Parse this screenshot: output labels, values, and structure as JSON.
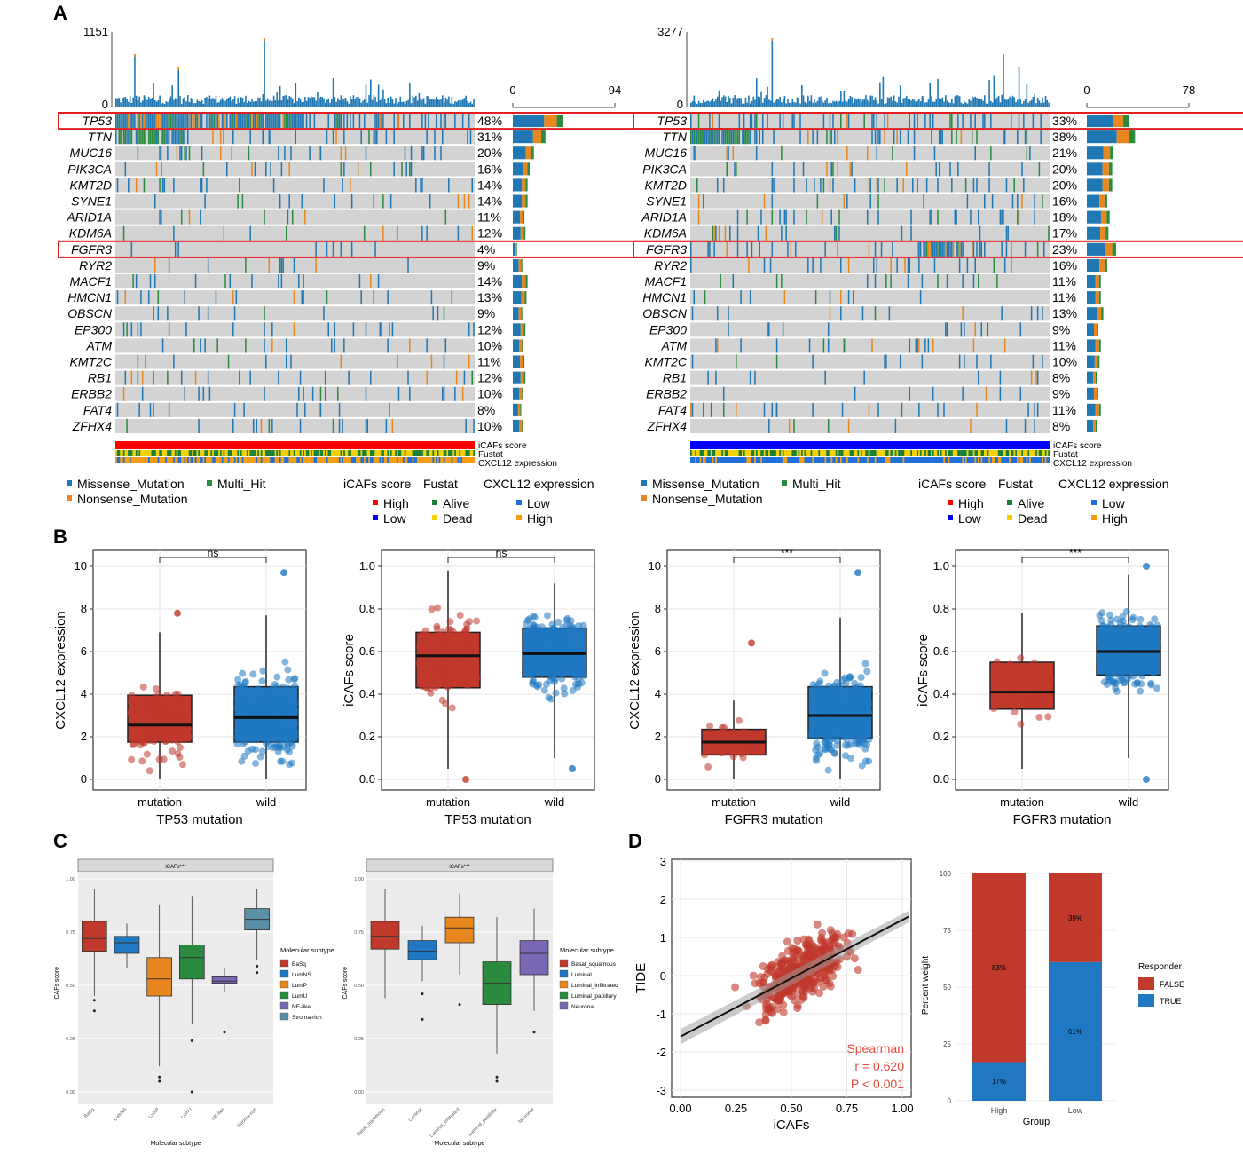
{
  "panels": {
    "A": "A",
    "B": "B",
    "C": "C",
    "D": "D"
  },
  "colors": {
    "missense": "#1f77b4",
    "nonsense": "#e8871e",
    "multi_hit": "#2a8a3e",
    "grey": "#d3d3d3",
    "high": "#ff0000",
    "low": "#0000ff",
    "alive": "#1a7f37",
    "dead": "#f5d000",
    "expr_low": "#1e6fd9",
    "expr_high": "#f39c12",
    "red_box": "#c0392b",
    "blue_box": "#1f78c1",
    "false": "#c0392b",
    "true": "#1f78c1"
  },
  "chart_data": [
    {
      "type": "heatmap",
      "panel": "A",
      "side": "left",
      "tmb_max": "1151",
      "tmb_min": "0",
      "bar_axis_min": "0",
      "bar_axis_max": "94",
      "genes": [
        "TP53",
        "TTN",
        "MUC16",
        "PIK3CA",
        "KMT2D",
        "SYNE1",
        "ARID1A",
        "KDM6A",
        "FGFR3",
        "RYR2",
        "MACF1",
        "HMCN1",
        "OBSCN",
        "EP300",
        "ATM",
        "KMT2C",
        "RB1",
        "ERBB2",
        "FAT4",
        "ZFHX4"
      ],
      "percent": [
        "48%",
        "31%",
        "20%",
        "16%",
        "14%",
        "14%",
        "11%",
        "12%",
        "4%",
        "9%",
        "14%",
        "13%",
        "9%",
        "12%",
        "10%",
        "11%",
        "12%",
        "10%",
        "8%",
        "10%"
      ],
      "highlighted": [
        "TP53",
        "FGFR3"
      ],
      "annotations": [
        "iCAFs score",
        "Fustat",
        "CXCL12 expression"
      ],
      "icafs_group": "High"
    },
    {
      "type": "heatmap",
      "panel": "A",
      "side": "right",
      "tmb_max": "3277",
      "tmb_min": "0",
      "bar_axis_min": "0",
      "bar_axis_max": "78",
      "genes": [
        "TP53",
        "TTN",
        "MUC16",
        "PIK3CA",
        "KMT2D",
        "SYNE1",
        "ARID1A",
        "KDM6A",
        "FGFR3",
        "RYR2",
        "MACF1",
        "HMCN1",
        "OBSCN",
        "EP300",
        "ATM",
        "KMT2C",
        "RB1",
        "ERBB2",
        "FAT4",
        "ZFHX4"
      ],
      "percent": [
        "33%",
        "38%",
        "21%",
        "20%",
        "20%",
        "16%",
        "18%",
        "17%",
        "23%",
        "16%",
        "11%",
        "11%",
        "13%",
        "9%",
        "11%",
        "10%",
        "8%",
        "9%",
        "11%",
        "8%"
      ],
      "highlighted": [
        "TP53",
        "FGFR3"
      ],
      "annotations": [
        "iCAFs score",
        "Fustat",
        "CXCL12 expression"
      ],
      "icafs_group": "Low"
    },
    {
      "type": "boxplot",
      "panel": "B",
      "index": 1,
      "categories": [
        "mutation",
        "wild"
      ],
      "xlabel": "TP53 mutation",
      "ylabel": "CXCL12 expression",
      "yticks": [
        "0",
        "2",
        "4",
        "6",
        "8",
        "10"
      ],
      "ylim": [
        0,
        10
      ],
      "significance": "ns",
      "boxes": [
        {
          "q1": 1.75,
          "median": 2.55,
          "q3": 3.95,
          "lo": 0,
          "hi": 6.9
        },
        {
          "q1": 1.75,
          "median": 2.9,
          "q3": 4.35,
          "lo": 0,
          "hi": 7.7
        }
      ]
    },
    {
      "type": "boxplot",
      "panel": "B",
      "index": 2,
      "categories": [
        "mutation",
        "wild"
      ],
      "xlabel": "TP53 mutation",
      "ylabel": "iCAFs score",
      "yticks": [
        "0.0",
        "0.2",
        "0.4",
        "0.6",
        "0.8",
        "1.0"
      ],
      "ylim": [
        0,
        1
      ],
      "significance": "ns",
      "boxes": [
        {
          "q1": 0.43,
          "median": 0.58,
          "q3": 0.69,
          "lo": 0.05,
          "hi": 0.98
        },
        {
          "q1": 0.48,
          "median": 0.59,
          "q3": 0.71,
          "lo": 0.1,
          "hi": 0.92
        }
      ]
    },
    {
      "type": "boxplot",
      "panel": "B",
      "index": 3,
      "categories": [
        "mutation",
        "wild"
      ],
      "xlabel": "FGFR3 mutation",
      "ylabel": "CXCL12 expression",
      "yticks": [
        "0",
        "2",
        "4",
        "6",
        "8",
        "10"
      ],
      "ylim": [
        0,
        10
      ],
      "significance": "***",
      "boxes": [
        {
          "q1": 1.15,
          "median": 1.75,
          "q3": 2.35,
          "lo": 0,
          "hi": 3.7
        },
        {
          "q1": 1.95,
          "median": 3.0,
          "q3": 4.35,
          "lo": 0,
          "hi": 7.6
        }
      ]
    },
    {
      "type": "boxplot",
      "panel": "B",
      "index": 4,
      "categories": [
        "mutation",
        "wild"
      ],
      "xlabel": "FGFR3 mutation",
      "ylabel": "iCAFs score",
      "yticks": [
        "0.0",
        "0.2",
        "0.4",
        "0.6",
        "0.8",
        "1.0"
      ],
      "ylim": [
        0,
        1
      ],
      "significance": "***",
      "boxes": [
        {
          "q1": 0.33,
          "median": 0.41,
          "q3": 0.55,
          "lo": 0.05,
          "hi": 0.78
        },
        {
          "q1": 0.49,
          "median": 0.6,
          "q3": 0.72,
          "lo": 0.1,
          "hi": 0.96
        }
      ]
    },
    {
      "type": "boxplot",
      "panel": "C",
      "index": 1,
      "strip": "iCAFs***",
      "xlabel": "Molecular subtype",
      "ylabel": "iCAFs score",
      "legend_title": "Molecular subtype",
      "yticks": [
        "0.00",
        "0.25",
        "0.50",
        "0.75",
        "1.00"
      ],
      "ylim": [
        0,
        1
      ],
      "categories": [
        "BaSq",
        "LumNS",
        "LumP",
        "LumU",
        "NE-like",
        "Stroma-rich"
      ],
      "legend": [
        "BaSq",
        "LumNS",
        "LumP",
        "LumU",
        "NE-like",
        "Stroma-rich"
      ],
      "colors": [
        "#c0392b",
        "#1f78c1",
        "#e8871e",
        "#2a8a3e",
        "#7b68b5",
        "#5a8fa8"
      ],
      "boxes": [
        {
          "q1": 0.66,
          "median": 0.72,
          "q3": 0.8,
          "lo": 0.45,
          "hi": 0.95
        },
        {
          "q1": 0.65,
          "median": 0.7,
          "q3": 0.73,
          "lo": 0.58,
          "hi": 0.79
        },
        {
          "q1": 0.45,
          "median": 0.53,
          "q3": 0.63,
          "lo": 0.12,
          "hi": 0.88
        },
        {
          "q1": 0.53,
          "median": 0.63,
          "q3": 0.69,
          "lo": 0.32,
          "hi": 0.92
        },
        {
          "q1": 0.51,
          "median": 0.52,
          "q3": 0.54,
          "lo": 0.47,
          "hi": 0.58
        },
        {
          "q1": 0.76,
          "median": 0.81,
          "q3": 0.86,
          "lo": 0.62,
          "hi": 0.95
        }
      ]
    },
    {
      "type": "boxplot",
      "panel": "C",
      "index": 2,
      "strip": "iCAFs***",
      "xlabel": "Molecular subtype",
      "ylabel": "iCAFs score",
      "legend_title": "Molecular subtype",
      "yticks": [
        "0.00",
        "0.25",
        "0.50",
        "0.75",
        "1.00"
      ],
      "ylim": [
        0,
        1
      ],
      "categories": [
        "Basal_squamous",
        "Luminal",
        "Luminal_infiltrated",
        "Luminal_papillary",
        "Neuronal"
      ],
      "legend": [
        "Basal_squamous",
        "Luminal",
        "Luminal_infiltrated",
        "Luminal_papillary",
        "Neuronal"
      ],
      "colors": [
        "#c0392b",
        "#1f78c1",
        "#e8871e",
        "#2a8a3e",
        "#7b68b5"
      ],
      "boxes": [
        {
          "q1": 0.67,
          "median": 0.73,
          "q3": 0.8,
          "lo": 0.44,
          "hi": 0.95
        },
        {
          "q1": 0.62,
          "median": 0.66,
          "q3": 0.71,
          "lo": 0.52,
          "hi": 0.78
        },
        {
          "q1": 0.7,
          "median": 0.77,
          "q3": 0.82,
          "lo": 0.55,
          "hi": 0.93
        },
        {
          "q1": 0.41,
          "median": 0.51,
          "q3": 0.61,
          "lo": 0.18,
          "hi": 0.82
        },
        {
          "q1": 0.55,
          "median": 0.65,
          "q3": 0.71,
          "lo": 0.38,
          "hi": 0.86
        }
      ]
    },
    {
      "type": "scatter",
      "panel": "D",
      "xlabel": "iCAFs",
      "ylabel": "TIDE",
      "xticks": [
        "0.00",
        "0.25",
        "0.50",
        "0.75",
        "1.00"
      ],
      "yticks": [
        "-3",
        "-2",
        "-1",
        "0",
        "1",
        "2",
        "3"
      ],
      "xlim": [
        0,
        1
      ],
      "ylim": [
        -3,
        3
      ],
      "fit": {
        "x0": 0.0,
        "y0": -1.6,
        "x1": 1.03,
        "y1": 1.55
      },
      "annotation": [
        "Spearman",
        "r = 0.620",
        "P < 0.001"
      ]
    },
    {
      "type": "bar",
      "panel": "D",
      "xlabel": "Group",
      "ylabel": "Percent weight",
      "legend_title": "Responder",
      "categories": [
        "High",
        "Low"
      ],
      "yticks": [
        "0",
        "25",
        "50",
        "75",
        "100"
      ],
      "ylim": [
        0,
        100
      ],
      "series": [
        {
          "name": "FALSE",
          "values": [
            83,
            39
          ],
          "labels": [
            "83%",
            "39%"
          ]
        },
        {
          "name": "TRUE",
          "values": [
            17,
            61
          ],
          "labels": [
            "17%",
            "61%"
          ]
        }
      ]
    }
  ],
  "legend_A": {
    "missense": "Missense_Mutation",
    "multi_hit": "Multi_Hit",
    "nonsense": "Nonsense_Mutation",
    "icafs_title": "iCAFs score",
    "fustat_title": "Fustat",
    "cxcl12_title": "CXCL12 expression",
    "high": "High",
    "low": "Low",
    "alive": "Alive",
    "dead": "Dead",
    "expr_low": "Low",
    "expr_high": "High"
  }
}
